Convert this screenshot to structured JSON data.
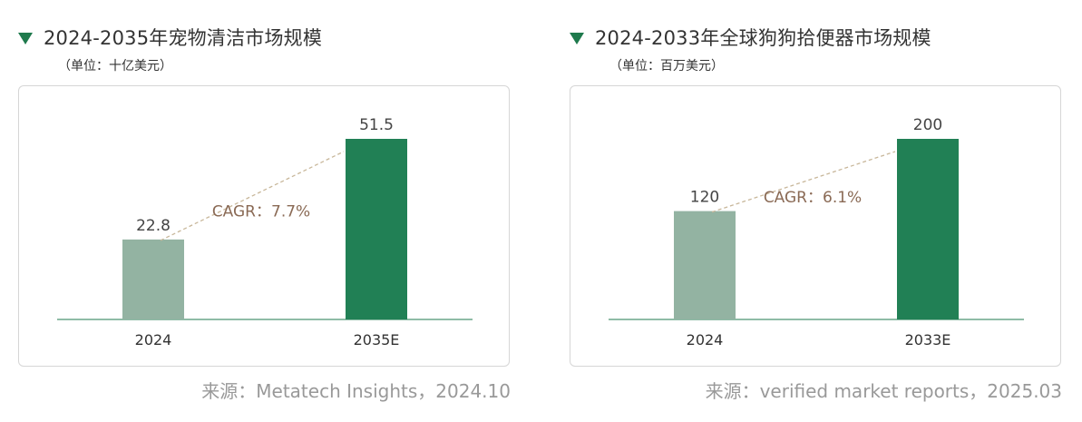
{
  "chart_data": [
    {
      "type": "bar",
      "title": "2024-2035年宠物清洁市场规模",
      "unit": "（单位：十亿美元）",
      "categories": [
        "2024",
        "2035E"
      ],
      "values": [
        22.8,
        51.5
      ],
      "value_labels": [
        "22.8",
        "51.5"
      ],
      "colors": [
        "#93b3a2",
        "#218055"
      ],
      "annotation": "CAGR：7.7%",
      "source": "来源：Metatech Insights，2024.10",
      "ylim": [
        0,
        51.5
      ]
    },
    {
      "type": "bar",
      "title": "2024-2033年全球狗狗拾便器市场规模",
      "unit": "（单位：百万美元）",
      "categories": [
        "2024",
        "2033E"
      ],
      "values": [
        120,
        200
      ],
      "value_labels": [
        "120",
        "200"
      ],
      "colors": [
        "#93b3a2",
        "#218055"
      ],
      "annotation": "CAGR：6.1%",
      "source": "来源：verified market reports，2025.03",
      "ylim": [
        0,
        200
      ]
    }
  ],
  "colors": {
    "accent": "#1f7a4d",
    "baseline": "#6aa58a",
    "trend_line": "#c8b79a",
    "annotation_text": "#8a6a55",
    "source_text": "#999999"
  }
}
